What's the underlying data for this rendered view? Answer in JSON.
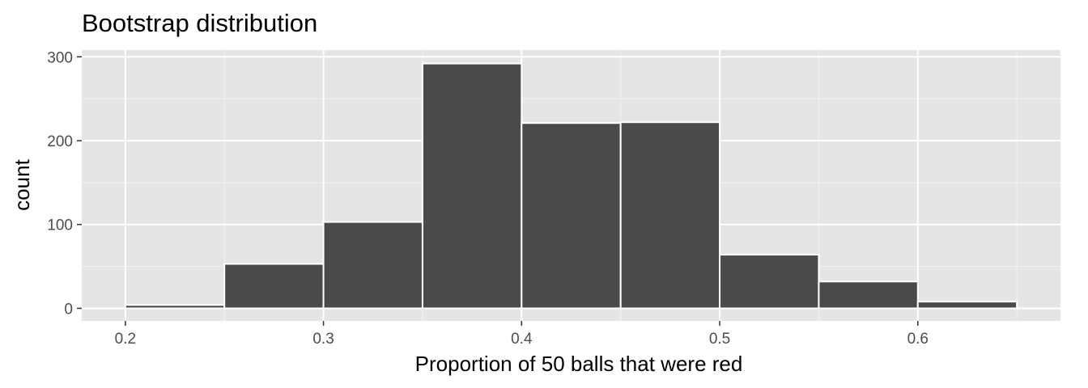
{
  "chart_data": {
    "type": "bar",
    "title": "Bootstrap distribution",
    "xlabel": "Proportion of 50 balls that were red",
    "ylabel": "count",
    "bin_edges": [
      0.2,
      0.25,
      0.3,
      0.35,
      0.4,
      0.45,
      0.5,
      0.55,
      0.6,
      0.65
    ],
    "values": [
      4,
      53,
      103,
      292,
      221,
      222,
      64,
      32,
      8
    ],
    "xlim": [
      0.178,
      0.672
    ],
    "ylim": [
      -15,
      308
    ],
    "x_ticks": [
      0.2,
      0.3,
      0.4,
      0.5,
      0.6
    ],
    "x_tick_labels": [
      "0.2",
      "0.3",
      "0.4",
      "0.5",
      "0.6"
    ],
    "y_ticks": [
      0,
      100,
      200,
      300
    ],
    "y_tick_labels": [
      "0",
      "100",
      "200",
      "300"
    ],
    "grid": true,
    "colors": {
      "bar_fill": "#4a4a4a",
      "bar_edge": "#ffffff",
      "panel_background": "#e5e5e5",
      "grid_major": "#ffffff",
      "grid_minor": "#f2f2f2",
      "tick_text": "#4d4d4d",
      "tick_mark": "#333333"
    }
  }
}
